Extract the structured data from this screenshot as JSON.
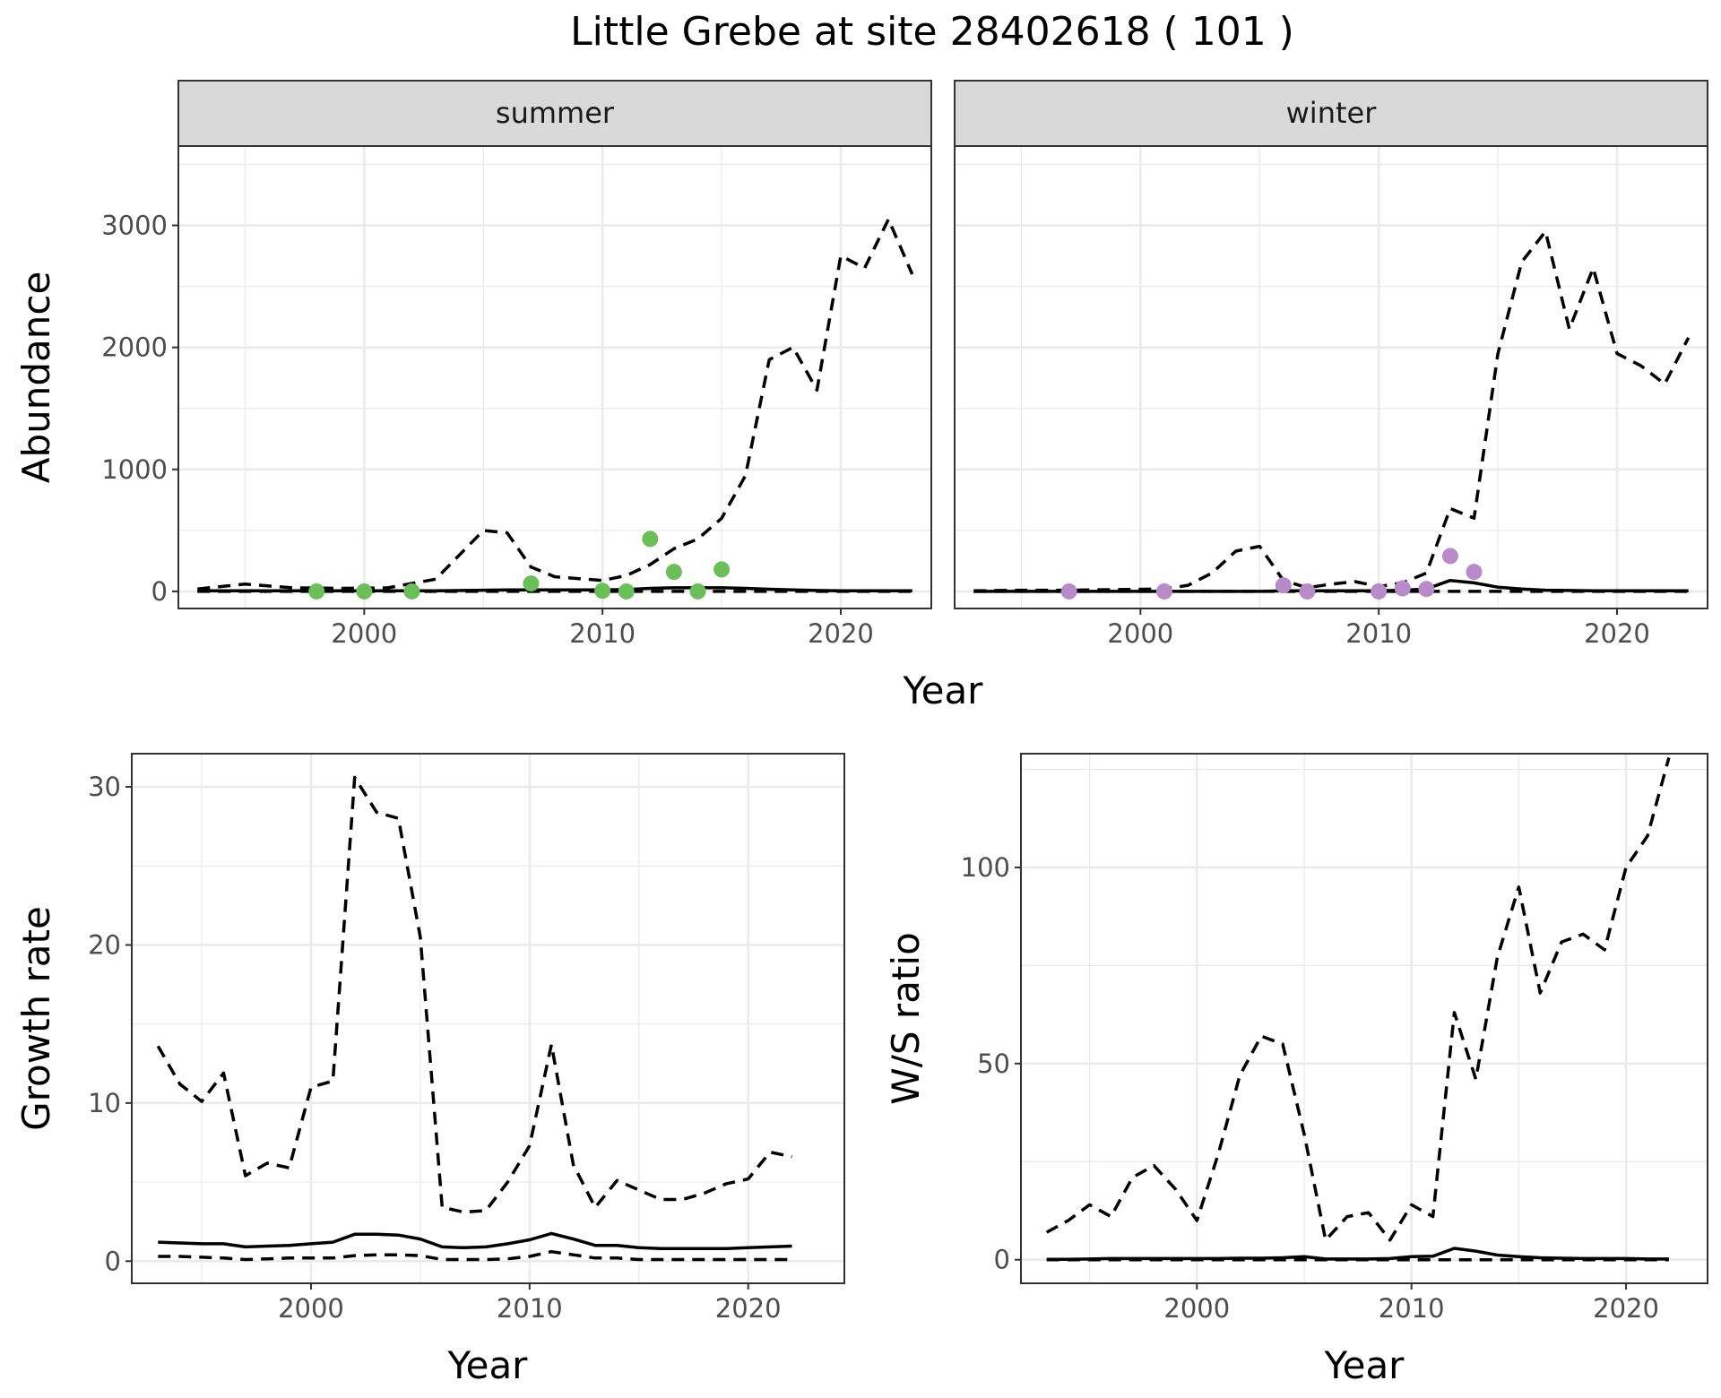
{
  "title": "Little Grebe at site 28402618 ( 101 )",
  "chart_data": [
    {
      "id": "abundance",
      "type": "line",
      "facets": [
        "summer",
        "winter"
      ],
      "xlabel": "Year",
      "ylabel": "Abundance",
      "xlim": [
        1992.2,
        2023.8
      ],
      "ylim": [
        -140,
        3650
      ],
      "x_ticks": [
        2000,
        2010,
        2020
      ],
      "y_ticks": [
        0,
        1000,
        2000,
        3000
      ],
      "point_colors": {
        "summer": "#6abf59",
        "winter": "#b88ac8"
      },
      "panels": [
        {
          "strip": "summer",
          "years": [
            1993,
            1995,
            1997,
            1999,
            2001,
            2003,
            2005,
            2006,
            2007,
            2008,
            2010,
            2011,
            2012,
            2013,
            2014,
            2015,
            2016,
            2017,
            2018,
            2019,
            2020,
            2021,
            2022,
            2023
          ],
          "estimate": [
            5,
            5,
            5,
            5,
            5,
            5,
            10,
            12,
            12,
            12,
            12,
            15,
            25,
            30,
            30,
            30,
            25,
            18,
            12,
            8,
            5,
            5,
            5,
            5
          ],
          "ci_upper": [
            20,
            60,
            30,
            25,
            30,
            100,
            500,
            480,
            200,
            120,
            90,
            130,
            220,
            350,
            430,
            600,
            950,
            1900,
            2000,
            1650,
            2750,
            2650,
            3050,
            2600
          ],
          "ci_lower": [
            0,
            0,
            0,
            0,
            0,
            0,
            0,
            0,
            0,
            0,
            0,
            0,
            0,
            0,
            0,
            0,
            0,
            0,
            0,
            0,
            0,
            0,
            0,
            0
          ],
          "points": [
            {
              "x": 1998,
              "y": 0
            },
            {
              "x": 2000,
              "y": 0
            },
            {
              "x": 2002,
              "y": 0
            },
            {
              "x": 2007,
              "y": 65
            },
            {
              "x": 2010,
              "y": 5
            },
            {
              "x": 2011,
              "y": 0
            },
            {
              "x": 2012,
              "y": 430
            },
            {
              "x": 2013,
              "y": 160
            },
            {
              "x": 2014,
              "y": 0
            },
            {
              "x": 2015,
              "y": 180
            }
          ]
        },
        {
          "strip": "winter",
          "years": [
            1993,
            1995,
            1997,
            1999,
            2001,
            2002,
            2003,
            2004,
            2005,
            2006,
            2007,
            2008,
            2009,
            2010,
            2011,
            2012,
            2013,
            2014,
            2015,
            2016,
            2017,
            2018,
            2019,
            2020,
            2021,
            2022,
            2023
          ],
          "estimate": [
            0,
            0,
            0,
            0,
            0,
            0,
            0,
            0,
            0,
            5,
            5,
            5,
            5,
            5,
            10,
            20,
            90,
            70,
            35,
            20,
            10,
            8,
            5,
            5,
            5,
            5,
            5
          ],
          "ci_upper": [
            5,
            10,
            10,
            15,
            20,
            50,
            150,
            330,
            370,
            90,
            30,
            60,
            80,
            40,
            70,
            150,
            680,
            600,
            1950,
            2700,
            2950,
            2150,
            2650,
            1950,
            1850,
            1700,
            2080
          ],
          "ci_lower": [
            0,
            0,
            0,
            0,
            0,
            0,
            0,
            0,
            0,
            0,
            0,
            0,
            0,
            0,
            0,
            0,
            0,
            0,
            0,
            0,
            0,
            0,
            0,
            0,
            0,
            0,
            0
          ],
          "points": [
            {
              "x": 1997,
              "y": 0
            },
            {
              "x": 2001,
              "y": 0
            },
            {
              "x": 2006,
              "y": 50
            },
            {
              "x": 2007,
              "y": 0
            },
            {
              "x": 2010,
              "y": 0
            },
            {
              "x": 2011,
              "y": 25
            },
            {
              "x": 2012,
              "y": 20
            },
            {
              "x": 2013,
              "y": 290
            },
            {
              "x": 2014,
              "y": 160
            }
          ]
        }
      ]
    },
    {
      "id": "growth",
      "type": "line",
      "xlabel": "Year",
      "ylabel": "Growth rate",
      "xlim": [
        1991.8,
        2024.4
      ],
      "ylim": [
        -1.4,
        32.1
      ],
      "x_ticks": [
        2000,
        2010,
        2020
      ],
      "y_ticks": [
        0,
        10,
        20,
        30
      ],
      "years": [
        1993,
        1994,
        1995,
        1996,
        1997,
        1998,
        1999,
        2000,
        2001,
        2002,
        2003,
        2004,
        2005,
        2006,
        2007,
        2008,
        2009,
        2010,
        2011,
        2012,
        2013,
        2014,
        2015,
        2016,
        2017,
        2018,
        2019,
        2020,
        2021,
        2022
      ],
      "estimate": [
        1.2,
        1.15,
        1.1,
        1.1,
        0.9,
        0.95,
        1.0,
        1.1,
        1.2,
        1.7,
        1.7,
        1.65,
        1.4,
        0.9,
        0.85,
        0.9,
        1.1,
        1.35,
        1.75,
        1.4,
        1.0,
        1.0,
        0.85,
        0.8,
        0.8,
        0.8,
        0.8,
        0.85,
        0.9,
        0.95
      ],
      "ci_upper": [
        13.6,
        11.2,
        10.1,
        11.9,
        5.4,
        6.2,
        5.9,
        11.0,
        11.4,
        30.6,
        28.4,
        28.0,
        20.5,
        3.4,
        3.1,
        3.2,
        5.0,
        7.3,
        13.7,
        6.1,
        3.4,
        5.1,
        4.5,
        3.9,
        3.9,
        4.3,
        4.9,
        5.2,
        6.9,
        6.6
      ],
      "ci_lower": [
        0.3,
        0.3,
        0.25,
        0.2,
        0.1,
        0.15,
        0.2,
        0.2,
        0.2,
        0.35,
        0.4,
        0.4,
        0.35,
        0.1,
        0.1,
        0.1,
        0.15,
        0.3,
        0.6,
        0.4,
        0.2,
        0.2,
        0.1,
        0.1,
        0.1,
        0.1,
        0.1,
        0.1,
        0.1,
        0.1
      ]
    },
    {
      "id": "ratio",
      "type": "line",
      "xlabel": "Year",
      "ylabel": "W/S ratio",
      "xlim": [
        1991.8,
        2023.8
      ],
      "ylim": [
        -6,
        129
      ],
      "x_ticks": [
        2000,
        2010,
        2020
      ],
      "y_ticks": [
        0,
        50,
        100
      ],
      "years": [
        1993,
        1994,
        1995,
        1996,
        1997,
        1998,
        1999,
        2000,
        2001,
        2002,
        2003,
        2004,
        2005,
        2006,
        2007,
        2008,
        2009,
        2010,
        2011,
        2012,
        2013,
        2014,
        2015,
        2016,
        2017,
        2018,
        2019,
        2020,
        2021,
        2022
      ],
      "estimate": [
        0.1,
        0.1,
        0.2,
        0.3,
        0.3,
        0.3,
        0.3,
        0.3,
        0.3,
        0.4,
        0.4,
        0.5,
        0.8,
        0.2,
        0.2,
        0.2,
        0.3,
        0.8,
        0.9,
        2.9,
        2.2,
        1.2,
        0.8,
        0.5,
        0.4,
        0.3,
        0.3,
        0.3,
        0.2,
        0.2
      ],
      "ci_upper": [
        7,
        10,
        14,
        11,
        21,
        24,
        18,
        10,
        27,
        47,
        57,
        55,
        32,
        5,
        11,
        12,
        5,
        14,
        11,
        63,
        46,
        77,
        95,
        68,
        81,
        83,
        79,
        100,
        108,
        128
      ],
      "ci_lower": [
        0,
        0,
        0,
        0,
        0,
        0,
        0,
        0,
        0,
        0,
        0,
        0,
        0,
        0,
        0,
        0,
        0,
        0,
        0,
        0,
        0,
        0,
        0,
        0,
        0,
        0,
        0,
        0,
        0,
        0
      ]
    }
  ]
}
